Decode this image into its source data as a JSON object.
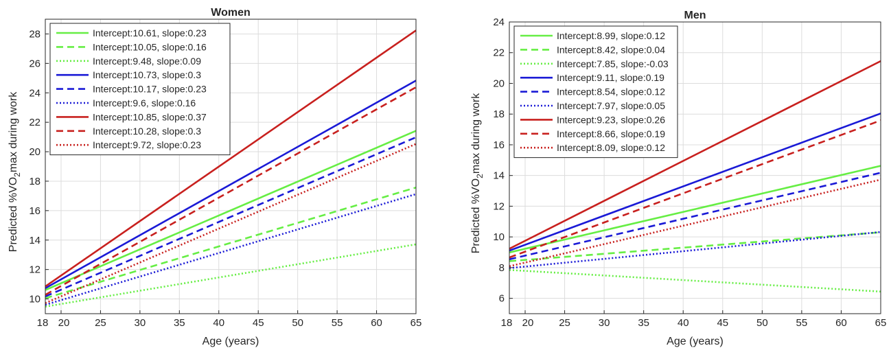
{
  "chart_data": [
    {
      "type": "line",
      "title": "Women",
      "xlabel": "Age (years)",
      "ylabel": "Predicted %VO2max during work",
      "xlim": [
        18,
        65
      ],
      "ylim": [
        9,
        29
      ],
      "xticks": [
        18,
        20,
        25,
        30,
        35,
        40,
        45,
        50,
        55,
        60,
        65
      ],
      "yticks": [
        10,
        12,
        14,
        16,
        18,
        20,
        22,
        24,
        26,
        28
      ],
      "grid": true,
      "legend_position": "top-left",
      "series": [
        {
          "name": "Intercept:10.61, slope:0.23",
          "color": "#66ee44",
          "style": "solid",
          "x": [
            18,
            65
          ],
          "values": [
            10.61,
            21.42
          ]
        },
        {
          "name": "Intercept:10.05, slope:0.16",
          "color": "#66ee44",
          "style": "dashed",
          "x": [
            18,
            65
          ],
          "values": [
            10.05,
            17.57
          ]
        },
        {
          "name": "Intercept:9.48, slope:0.09",
          "color": "#66ee44",
          "style": "dotted",
          "x": [
            18,
            65
          ],
          "values": [
            9.48,
            13.71
          ]
        },
        {
          "name": "Intercept:10.73, slope:0.3",
          "color": "#1a1ad6",
          "style": "solid",
          "x": [
            18,
            65
          ],
          "values": [
            10.73,
            24.83
          ]
        },
        {
          "name": "Intercept:10.17, slope:0.23",
          "color": "#1a1ad6",
          "style": "dashed",
          "x": [
            18,
            65
          ],
          "values": [
            10.17,
            20.98
          ]
        },
        {
          "name": "Intercept:9.6, slope:0.16",
          "color": "#1a1ad6",
          "style": "dotted",
          "x": [
            18,
            65
          ],
          "values": [
            9.6,
            17.12
          ]
        },
        {
          "name": "Intercept:10.85, slope:0.37",
          "color": "#c8201e",
          "style": "solid",
          "x": [
            18,
            65
          ],
          "values": [
            10.85,
            28.24
          ]
        },
        {
          "name": "Intercept:10.28, slope:0.3",
          "color": "#c8201e",
          "style": "dashed",
          "x": [
            18,
            65
          ],
          "values": [
            10.28,
            24.38
          ]
        },
        {
          "name": "Intercept:9.72, slope:0.23",
          "color": "#c8201e",
          "style": "dotted",
          "x": [
            18,
            65
          ],
          "values": [
            9.72,
            20.53
          ]
        }
      ]
    },
    {
      "type": "line",
      "title": "Men",
      "xlabel": "Age (years)",
      "ylabel": "Predicted %VO2max during work",
      "xlim": [
        18,
        65
      ],
      "ylim": [
        5,
        24
      ],
      "xticks": [
        18,
        20,
        25,
        30,
        35,
        40,
        45,
        50,
        55,
        60,
        65
      ],
      "yticks": [
        6,
        8,
        10,
        12,
        14,
        16,
        18,
        20,
        22,
        24
      ],
      "grid": true,
      "legend_position": "top-left",
      "series": [
        {
          "name": "Intercept:8.99, slope:0.12",
          "color": "#66ee44",
          "style": "solid",
          "x": [
            18,
            65
          ],
          "values": [
            8.99,
            14.63
          ]
        },
        {
          "name": "Intercept:8.42, slope:0.04",
          "color": "#66ee44",
          "style": "dashed",
          "x": [
            18,
            65
          ],
          "values": [
            8.42,
            10.3
          ]
        },
        {
          "name": "Intercept:7.85, slope:-0.03",
          "color": "#66ee44",
          "style": "dotted",
          "x": [
            18,
            65
          ],
          "values": [
            7.85,
            6.44
          ]
        },
        {
          "name": "Intercept:9.11, slope:0.19",
          "color": "#1a1ad6",
          "style": "solid",
          "x": [
            18,
            65
          ],
          "values": [
            9.11,
            18.04
          ]
        },
        {
          "name": "Intercept:8.54, slope:0.12",
          "color": "#1a1ad6",
          "style": "dashed",
          "x": [
            18,
            65
          ],
          "values": [
            8.54,
            14.18
          ]
        },
        {
          "name": "Intercept:7.97, slope:0.05",
          "color": "#1a1ad6",
          "style": "dotted",
          "x": [
            18,
            65
          ],
          "values": [
            7.97,
            10.32
          ]
        },
        {
          "name": "Intercept:9.23, slope:0.26",
          "color": "#c8201e",
          "style": "solid",
          "x": [
            18,
            65
          ],
          "values": [
            9.23,
            21.45
          ]
        },
        {
          "name": "Intercept:8.66, slope:0.19",
          "color": "#c8201e",
          "style": "dashed",
          "x": [
            18,
            65
          ],
          "values": [
            8.66,
            17.59
          ]
        },
        {
          "name": "Intercept:8.09, slope:0.12",
          "color": "#c8201e",
          "style": "dotted",
          "x": [
            18,
            65
          ],
          "values": [
            8.09,
            13.73
          ]
        }
      ]
    }
  ]
}
